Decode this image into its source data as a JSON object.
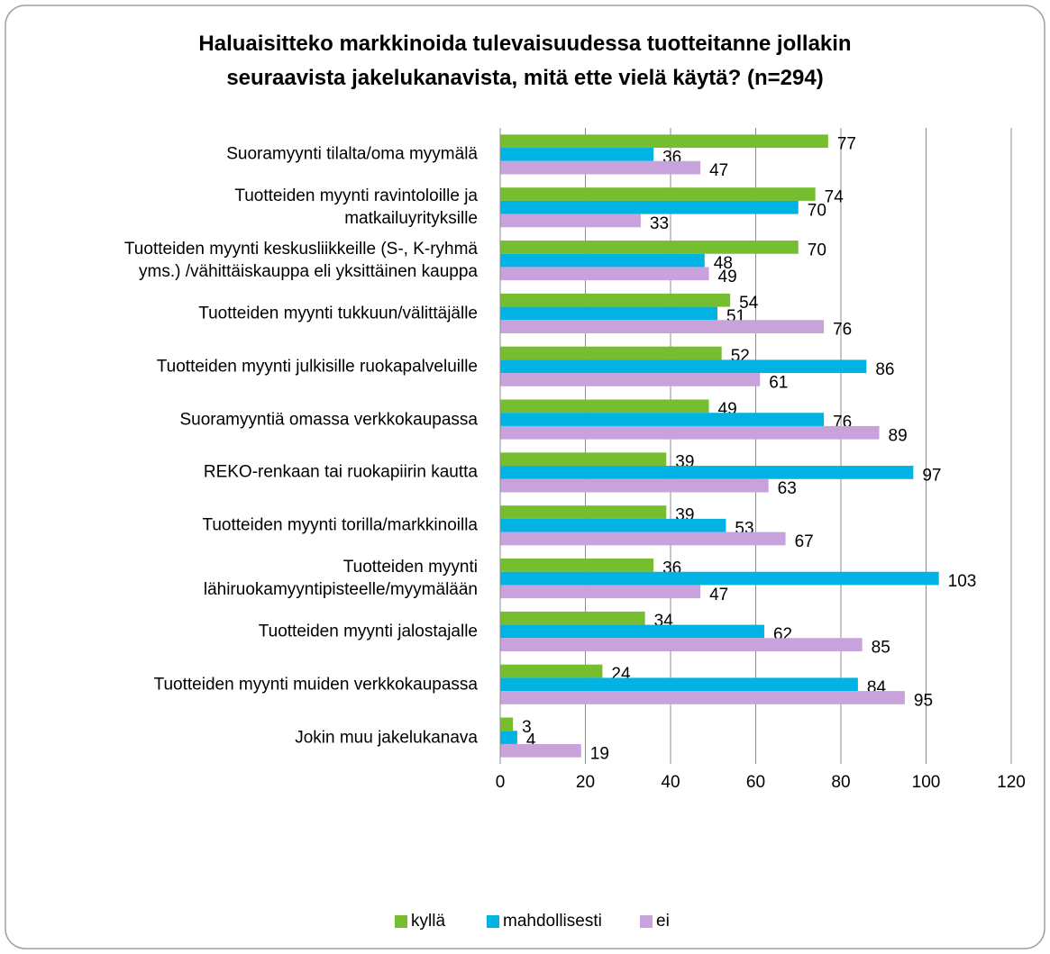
{
  "chart_data": {
    "type": "hbar",
    "title": "Haluaisitteko markkinoida tulevaisuudessa tuotteitanne jollakin\nseuraavista jakelukanavista, mitä ette vielä käytä? (n=294)",
    "categories": [
      "Suoramyynti tilalta/oma myymälä",
      "Tuotteiden myynti ravintoloille ja\nmatkailuyrityksille",
      "Tuotteiden myynti keskusliikkeille (S-, K-ryhmä\nyms.) /vähittäiskauppa eli yksittäinen kauppa",
      "Tuotteiden myynti tukkuun/välittäjälle",
      "Tuotteiden myynti julkisille ruokapalveluille",
      "Suoramyyntiä omassa verkkokaupassa",
      "REKO-renkaan tai ruokapiirin kautta",
      "Tuotteiden myynti torilla/markkinoilla",
      "Tuotteiden myynti\nlähiruokamyyntipisteelle/myymälään",
      "Tuotteiden myynti jalostajalle",
      "Tuotteiden myynti muiden verkkokaupassa",
      "Jokin muu jakelukanava"
    ],
    "series": [
      {
        "name": "kyllä",
        "color": "#76bd2f",
        "values": [
          77,
          74,
          70,
          54,
          52,
          49,
          39,
          39,
          36,
          34,
          24,
          3
        ]
      },
      {
        "name": "mahdollisesti",
        "color": "#00b3e3",
        "values": [
          36,
          70,
          48,
          51,
          86,
          76,
          97,
          53,
          103,
          62,
          84,
          4
        ]
      },
      {
        "name": "ei",
        "color": "#c8a2db",
        "values": [
          47,
          33,
          49,
          76,
          61,
          89,
          63,
          67,
          47,
          85,
          95,
          19
        ]
      }
    ],
    "xlim": [
      0,
      120
    ],
    "xticks": [
      0,
      20,
      40,
      60,
      80,
      100,
      120
    ],
    "grid": true,
    "legend": "bottom"
  }
}
